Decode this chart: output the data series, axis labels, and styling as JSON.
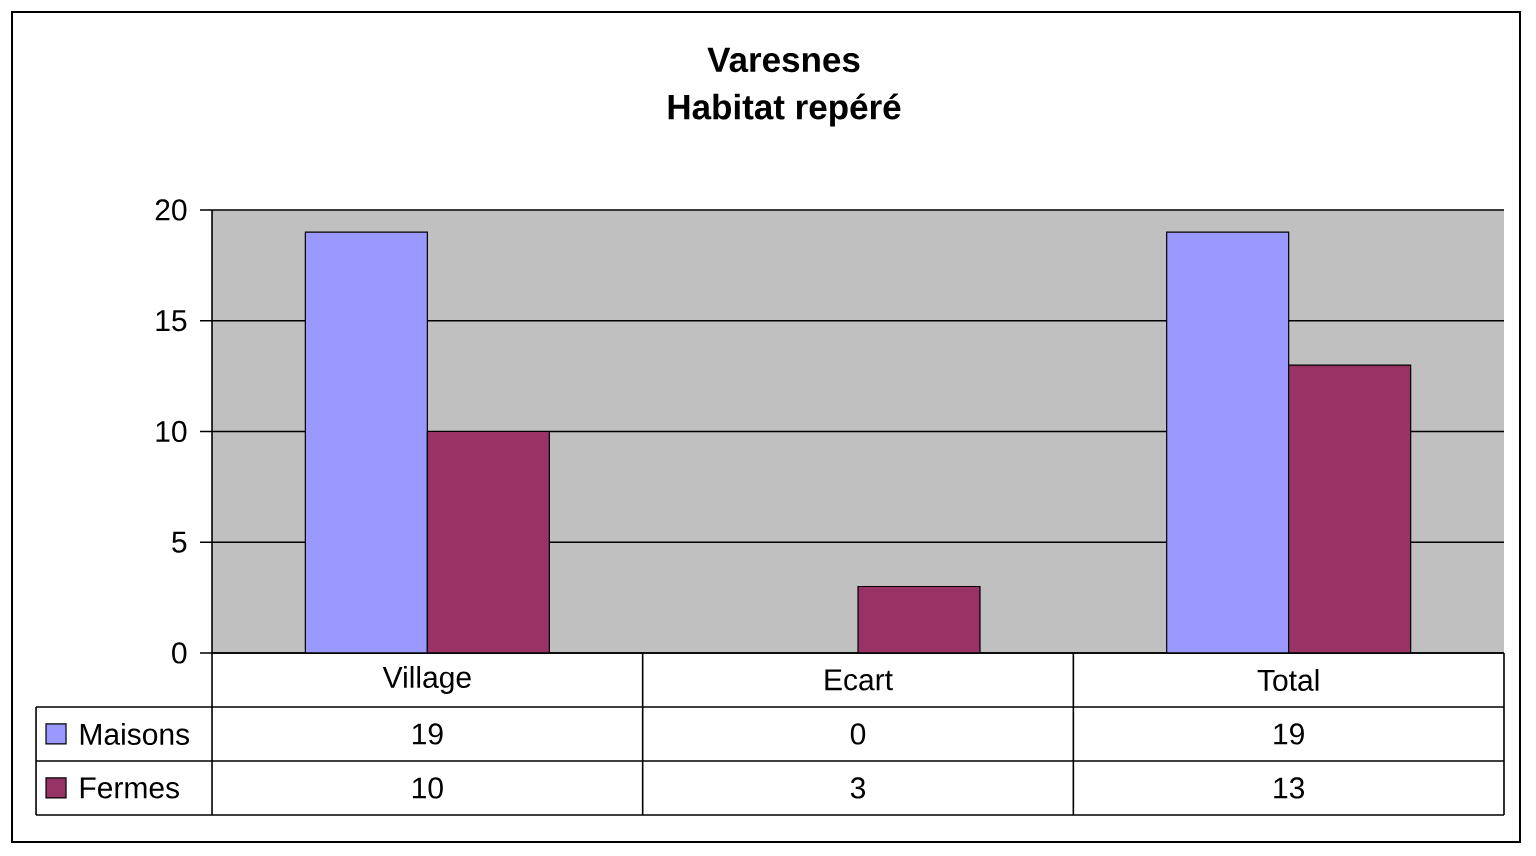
{
  "chart_data": {
    "type": "bar",
    "title": "Varesnes",
    "subtitle": "Habitat repéré",
    "categories": [
      "Village",
      "Ecart",
      "Total"
    ],
    "series": [
      {
        "name": "Maisons",
        "color": "#9999ff",
        "values": [
          19,
          0,
          19
        ]
      },
      {
        "name": "Fermes",
        "color": "#993366",
        "values": [
          10,
          3,
          13
        ]
      }
    ],
    "ylim": [
      0,
      20
    ],
    "yticks": [
      0,
      5,
      10,
      15,
      20
    ],
    "grid": "y",
    "legend": "bottom left",
    "data_labels": true
  }
}
